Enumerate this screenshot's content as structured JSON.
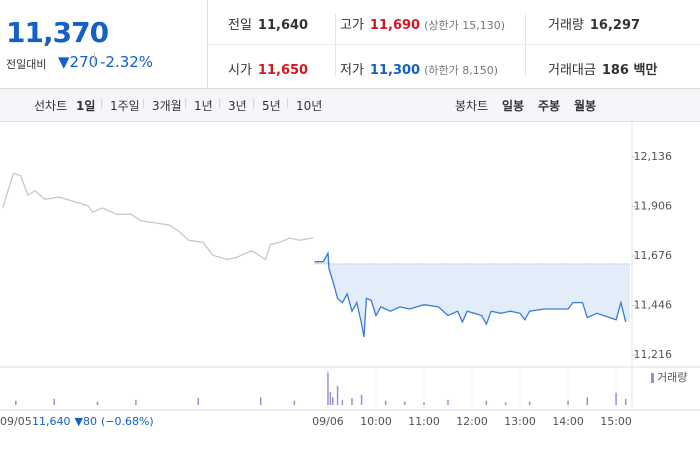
{
  "header": {
    "price": "11,370",
    "change_label": "전일대비",
    "change": "▼270",
    "rate": "-2.32%",
    "stats": [
      {
        "label": "전일",
        "value": "11,640"
      },
      {
        "label": "고가",
        "value": "11,690",
        "note": "(상한가 15,130)"
      },
      {
        "label": "거래량",
        "value": "16,297"
      },
      {
        "label": "시가",
        "value": "11,650"
      },
      {
        "label": "저가",
        "value": "11,300",
        "note": "(하한가 8,150)"
      },
      {
        "label": "거래대금",
        "value": "186 백만"
      }
    ]
  },
  "tabs": {
    "line_label": "선차트",
    "line_periods": [
      "1일",
      "1주일",
      "3개월",
      "1년",
      "3년",
      "5년",
      "10년"
    ],
    "active": "1일",
    "candle_label": "봉차트",
    "candle_periods": [
      "일봉",
      "주봉",
      "월봉"
    ]
  },
  "prev_day": {
    "close": "11,640",
    "change": "▼80",
    "rate": "(−0.68%)"
  },
  "chart_data": {
    "type": "line",
    "xlim": [
      2.17,
      15.29
    ],
    "ylim": [
      11170,
      12285
    ],
    "baseline": 11640,
    "xticks": [
      {
        "value": 2.17,
        "label": "09/05"
      },
      {
        "value": 9,
        "label": "09/06"
      },
      {
        "value": 10,
        "label": "10:00"
      },
      {
        "value": 11,
        "label": "11:00"
      },
      {
        "value": 12,
        "label": "12:00"
      },
      {
        "value": 13,
        "label": "13:00"
      },
      {
        "value": 14,
        "label": "14:00"
      },
      {
        "value": 15,
        "label": "15:00"
      }
    ],
    "yticks": [
      {
        "value": 11216,
        "label": "11,216"
      },
      {
        "value": 11446,
        "label": "11,446"
      },
      {
        "value": 11676,
        "label": "11,676"
      },
      {
        "value": 11906,
        "label": "11,906"
      },
      {
        "value": 12136,
        "label": "12,136"
      }
    ],
    "series": [
      {
        "color": "#c8c8c8",
        "x": [
          2.23,
          2.35,
          2.45,
          2.6,
          2.75,
          2.9,
          3.1,
          3.4,
          3.7,
          4.0,
          4.1,
          4.3,
          4.6,
          4.9,
          5.1,
          5.4,
          5.7,
          5.9,
          6.1,
          6.4,
          6.6,
          6.9,
          7.1,
          7.4,
          7.5,
          7.7,
          7.8,
          8.0,
          8.2,
          8.4,
          8.69
        ],
        "values": [
          11900,
          11990,
          12060,
          12050,
          11960,
          11980,
          11940,
          11950,
          11930,
          11910,
          11880,
          11900,
          11870,
          11870,
          11840,
          11830,
          11820,
          11790,
          11750,
          11740,
          11680,
          11660,
          11670,
          11700,
          11690,
          11660,
          11730,
          11740,
          11760,
          11750,
          11760
        ]
      },
      {
        "color": "#3b7ad8",
        "fill": "#e3edfa",
        "x": [
          8.72,
          8.9,
          9.0,
          9.02,
          9.1,
          9.2,
          9.3,
          9.4,
          9.5,
          9.6,
          9.7,
          9.75,
          9.8,
          9.9,
          10.0,
          10.1,
          10.3,
          10.5,
          10.7,
          11.0,
          11.3,
          11.5,
          11.7,
          11.8,
          11.9,
          12.2,
          12.3,
          12.4,
          12.6,
          12.8,
          13.0,
          13.1,
          13.2,
          13.5,
          14.0,
          14.1,
          14.3,
          14.4,
          14.6,
          15.0,
          15.1,
          15.2
        ],
        "values": [
          11650,
          11650,
          11690,
          11620,
          11560,
          11480,
          11460,
          11500,
          11420,
          11460,
          11360,
          11300,
          11480,
          11470,
          11400,
          11440,
          11420,
          11440,
          11430,
          11450,
          11440,
          11400,
          11420,
          11370,
          11420,
          11400,
          11360,
          11420,
          11410,
          11420,
          11410,
          11380,
          11420,
          11430,
          11430,
          11460,
          11460,
          11390,
          11410,
          11380,
          11460,
          11370
        ]
      }
    ],
    "volume": {
      "name": "거래량",
      "color": "#9d8fd0",
      "vlim": [
        0,
        4000
      ],
      "x": [
        2.5,
        3.3,
        4.2,
        5.0,
        6.3,
        7.6,
        8.3,
        9.0,
        9.05,
        9.1,
        9.2,
        9.3,
        9.5,
        9.7,
        10.2,
        10.6,
        11.0,
        11.5,
        12.3,
        12.7,
        13.2,
        14.0,
        14.4,
        15.0,
        15.2
      ],
      "values": [
        500,
        700,
        400,
        600,
        800,
        900,
        500,
        3700,
        1500,
        900,
        2200,
        600,
        800,
        1200,
        500,
        400,
        300,
        600,
        500,
        300,
        400,
        500,
        900,
        1400,
        700
      ]
    }
  }
}
